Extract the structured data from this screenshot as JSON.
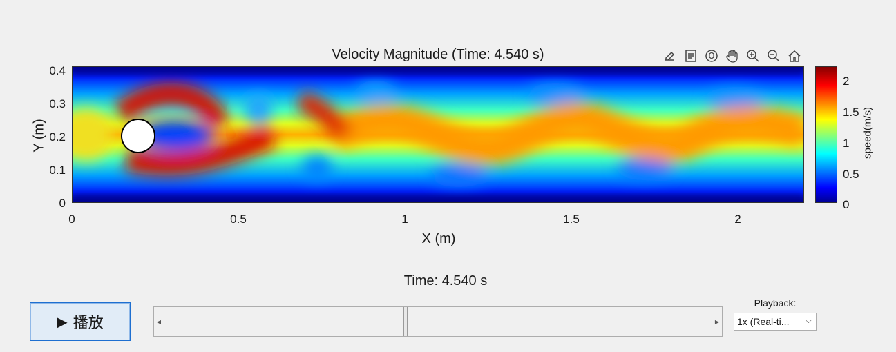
{
  "plot": {
    "title": "Velocity Magnitude (Time: 4.540 s)",
    "xlabel": "X (m)",
    "ylabel": "Y (m)",
    "xlim": [
      0,
      2.2
    ],
    "ylim": [
      0,
      0.41
    ],
    "x_ticks": [
      "0",
      "0.5",
      "1",
      "1.5",
      "2"
    ],
    "y_ticks": [
      "0",
      "0.1",
      "0.2",
      "0.3",
      "0.4"
    ],
    "obstacle": {
      "shape": "circle",
      "center_x": 0.2,
      "center_y": 0.2,
      "radius": 0.05,
      "color": "#ffffff"
    }
  },
  "colorbar": {
    "label": "speed(m/s)",
    "ticks": [
      "0",
      "0.5",
      "1",
      "1.5",
      "2"
    ],
    "range": [
      0,
      2.2
    ],
    "colormap": "jet"
  },
  "toolbar": {
    "icons": [
      "export-icon",
      "data-tips-icon",
      "rotate-icon",
      "pan-icon",
      "zoom-in-icon",
      "zoom-out-icon",
      "home-icon"
    ]
  },
  "time_label": "Time: 4.540 s",
  "controls": {
    "play_icon": "▶",
    "play_label": "播放",
    "slider_fraction": 0.44,
    "slider_left_arrow": "◀",
    "slider_right_arrow": "▶",
    "playback_label": "Playback:",
    "playback_value": "1x (Real-ti...",
    "playback_chevron": "⌵"
  },
  "colors": {
    "background": "#f0f0f0",
    "button_border": "#1e6fd0",
    "button_fill": "#e1ecf7"
  }
}
